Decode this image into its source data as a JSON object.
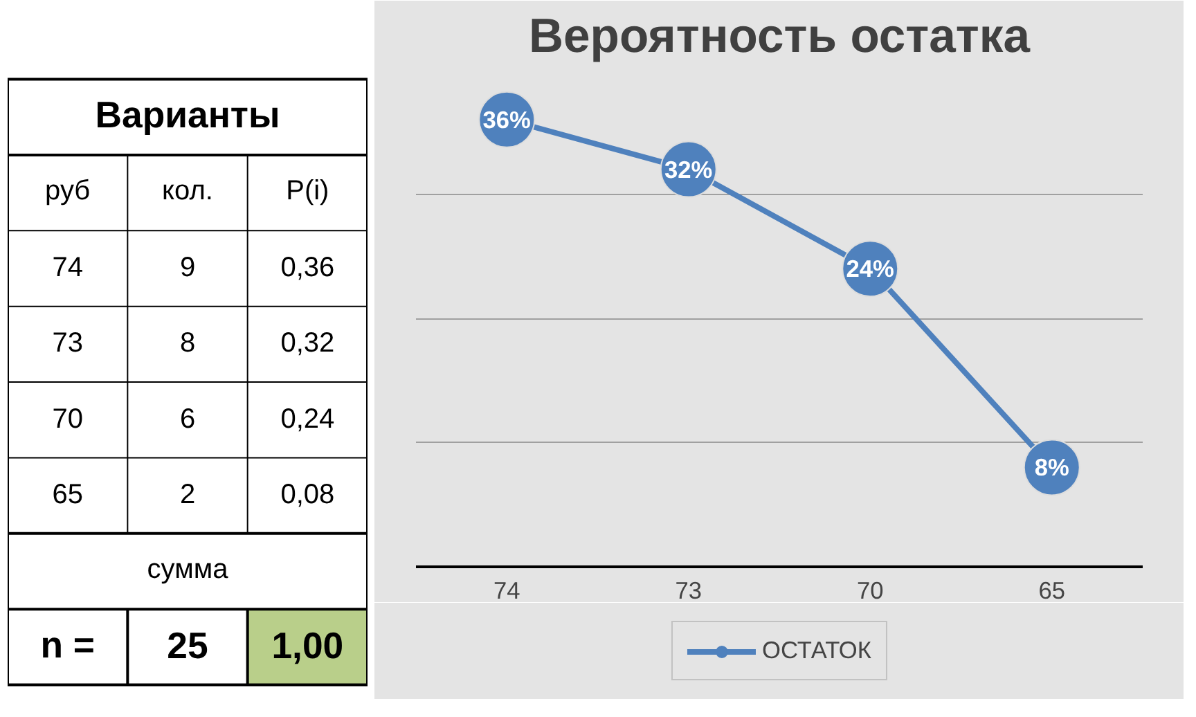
{
  "chart_data": [
    {
      "type": "other",
      "annotations": [
        "Варианты",
        "руб",
        "кол.",
        "P(i)",
        "74",
        "9",
        "0,36",
        "73",
        "8",
        "0,32",
        "70",
        "6",
        "0,24",
        "65",
        "2",
        "0,08",
        "сумма",
        "n =",
        "25",
        "1,00"
      ]
    },
    {
      "type": "line",
      "title": "Вероятность остатка",
      "categories": [
        "74",
        "73",
        "70",
        "65"
      ],
      "series": [
        {
          "name": "ОСТАТОК",
          "color": "#4f81bd",
          "values": [
            36,
            32,
            24,
            8
          ],
          "value_labels": [
            "36%",
            "32%",
            "24%",
            "8%"
          ]
        }
      ],
      "ylim": [
        0,
        40
      ],
      "yticks": [
        {
          "value": 0,
          "label": null
        },
        {
          "value": 10,
          "label": null
        },
        {
          "value": 20,
          "label": null
        },
        {
          "value": 30,
          "label": null
        },
        {
          "value": 40,
          "label": null
        }
      ],
      "tick_labels": "x",
      "grid": "y",
      "legend": "bottom",
      "marker": "circle",
      "line_style": "solid"
    }
  ]
}
